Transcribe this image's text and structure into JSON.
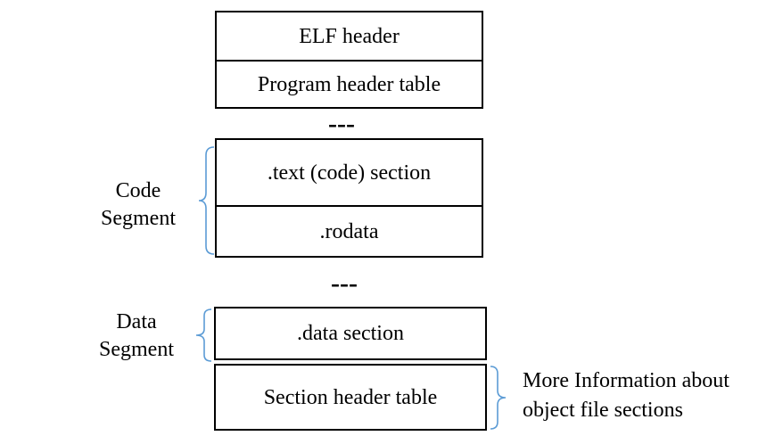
{
  "diagram": {
    "top_block": {
      "elf_header": "ELF header",
      "program_header_table": "Program header table"
    },
    "ellipsis_1": "---",
    "code_block": {
      "text_section": ".text (code) section",
      "rodata": ".rodata"
    },
    "ellipsis_2": "---",
    "data_block": {
      "data_section": ".data section"
    },
    "section_header_table": "Section header table",
    "labels": {
      "code_segment_line1": "Code",
      "code_segment_line2": "Segment",
      "data_segment_line1": "Data",
      "data_segment_line2": "Segment",
      "more_info_line1": "More Information about",
      "more_info_line2": "object file sections"
    },
    "colors": {
      "box_border": "#000000",
      "brace": "#5b9bd5"
    }
  }
}
